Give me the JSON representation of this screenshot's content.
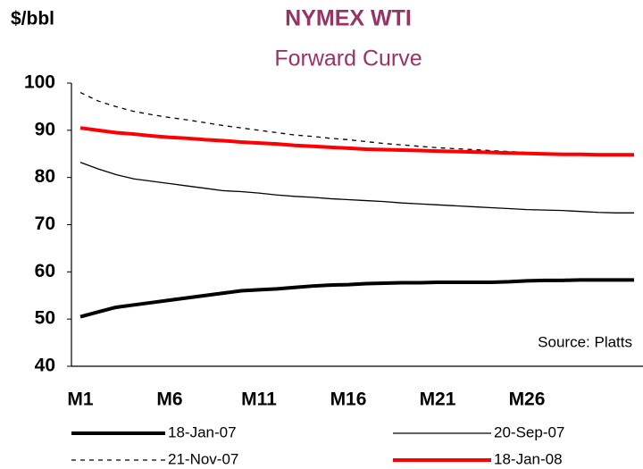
{
  "chart_data": {
    "type": "line",
    "title": "NYMEX WTI",
    "subtitle": "Forward Curve",
    "y_label": "$/bbl",
    "annotation": "Source: Platts",
    "categories": [
      "M1",
      null,
      null,
      null,
      null,
      "M6",
      null,
      null,
      null,
      null,
      "M11",
      null,
      null,
      null,
      null,
      "M16",
      null,
      null,
      null,
      null,
      "M21",
      null,
      null,
      null,
      null,
      "M26",
      null,
      null,
      null,
      null,
      null,
      null
    ],
    "ylim": [
      40,
      100
    ],
    "yticks": [
      40,
      50,
      60,
      70,
      80,
      90,
      100
    ],
    "grid": false,
    "legend": "bottom",
    "series": [
      {
        "name": "18-Jan-07",
        "color": "#000000",
        "line_width": 4,
        "dash": false,
        "values": [
          50.5,
          51.5,
          52.5,
          53,
          53.5,
          54,
          54.5,
          55,
          55.5,
          56,
          56.2,
          56.4,
          56.7,
          57,
          57.2,
          57.3,
          57.5,
          57.6,
          57.7,
          57.7,
          57.8,
          57.8,
          57.8,
          57.8,
          57.9,
          58.1,
          58.2,
          58.2,
          58.3,
          58.3,
          58.3,
          58.3
        ]
      },
      {
        "name": "20-Sep-07",
        "color": "#000000",
        "line_width": 1.3,
        "dash": false,
        "values": [
          83.2,
          81.8,
          80.6,
          79.7,
          79.2,
          78.7,
          78.2,
          77.7,
          77.2,
          77,
          76.7,
          76.3,
          76,
          75.8,
          75.5,
          75.3,
          75.1,
          74.9,
          74.6,
          74.4,
          74.2,
          74,
          73.8,
          73.6,
          73.4,
          73.2,
          73.1,
          73,
          72.8,
          72.6,
          72.5,
          72.5
        ]
      },
      {
        "name": "21-Nov-07",
        "color": "#000000",
        "line_width": 1.3,
        "dash": true,
        "values": [
          98,
          96.2,
          95,
          94,
          93.3,
          92.7,
          92.2,
          91.6,
          91,
          90.5,
          90,
          89.5,
          89,
          88.7,
          88.3,
          88,
          87.6,
          87.2,
          86.9,
          86.6,
          86.3,
          86.1,
          85.9,
          85.7,
          85.5,
          85.3,
          85.1,
          85,
          84.9,
          84.8,
          84.8,
          84.8
        ]
      },
      {
        "name": "18-Jan-08",
        "color": "#ff0000",
        "line_width": 4,
        "dash": false,
        "values": [
          90.5,
          90,
          89.5,
          89.2,
          88.8,
          88.5,
          88.3,
          88,
          87.8,
          87.5,
          87.3,
          87.1,
          86.8,
          86.6,
          86.4,
          86.2,
          86,
          85.9,
          85.8,
          85.7,
          85.6,
          85.5,
          85.4,
          85.3,
          85.2,
          85.1,
          85,
          84.9,
          84.9,
          84.8,
          84.8,
          84.8
        ]
      }
    ]
  }
}
